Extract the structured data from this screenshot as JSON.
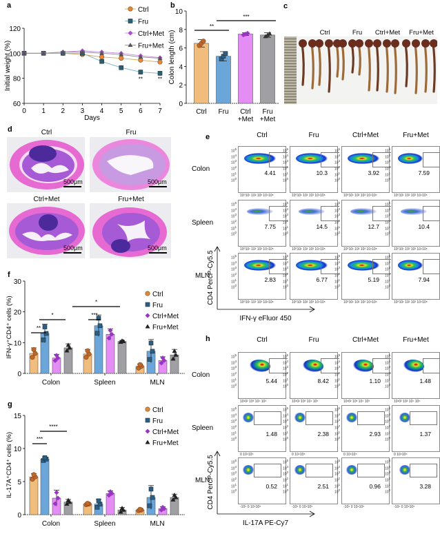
{
  "figure": {
    "panels": {
      "a": "a",
      "b": "b",
      "c": "c",
      "d": "d",
      "e": "e",
      "f": "f",
      "g": "g",
      "h": "h"
    },
    "groups": [
      "Ctrl",
      "Fru",
      "Ctrl+Met",
      "Fru+Met"
    ],
    "panel_c": {
      "labels": [
        "Ctrl",
        "Fru",
        "Ctrl+Met",
        "Fru+Met"
      ]
    },
    "panel_d": {
      "labels": [
        "Ctrl",
        "Fru",
        "Ctrl+Met",
        "Fru+Met"
      ],
      "scale_bar": "500μm"
    },
    "panel_e": {
      "col_titles": [
        "Ctrl",
        "Fru",
        "Ctrl+Met",
        "Fru+Met"
      ],
      "row_labels": [
        "Colon",
        "Spleen",
        "MLN"
      ],
      "values": [
        [
          "4.41",
          "10.3",
          "3.92",
          "7.59"
        ],
        [
          "7.75",
          "14.5",
          "12.7",
          "10.4"
        ],
        [
          "2.83",
          "6.77",
          "5.19",
          "7.94"
        ]
      ],
      "y_axis": "CD4 PercP-Cy5.5",
      "x_axis": "IFN-γ eFluor 450",
      "y_ticks": [
        "10⁵",
        "10⁴",
        "10³",
        "10²",
        "10¹",
        "10⁰"
      ],
      "x_ticks": "10⁰10¹ 10² 10³ 10⁴10⁵"
    },
    "panel_h": {
      "col_titles": [
        "Ctrl",
        "Fru",
        "Ctrl+Met",
        "Fru+Met"
      ],
      "row_labels": [
        "Colon",
        "Spleen",
        "MLN"
      ],
      "values": [
        [
          "5.44",
          "8.42",
          "1.10",
          "1.48"
        ],
        [
          "1.48",
          "2.38",
          "2.93",
          "1.37"
        ],
        [
          "0.52",
          "2.51",
          "0.96",
          "3.28"
        ]
      ],
      "y_axis": "CD4 PercP-Cy5.5",
      "x_axis": "IL-17A PE-Cy7",
      "x_ticks_rows": [
        "10¹0² 10³ 10⁴ 10⁵",
        "0     10⁴10⁵",
        "-10⁴  0    10⁴10⁵"
      ]
    }
  },
  "chart_data": [
    {
      "id": "a",
      "type": "line",
      "title": "",
      "xlabel": "Days",
      "ylabel": "Initial  weight (%)",
      "x": [
        0,
        1,
        2,
        3,
        4,
        5,
        6,
        7
      ],
      "xlim": [
        0,
        7
      ],
      "ylim": [
        60,
        120
      ],
      "yticks": [
        60,
        80,
        100,
        120
      ],
      "legend_position": "top-right",
      "series": [
        {
          "name": "Ctrl",
          "color": "#e8883a",
          "marker": "circle",
          "values": [
            100,
            100,
            100,
            99,
            97,
            96,
            94.5,
            93
          ]
        },
        {
          "name": "Fru",
          "color": "#2f5f6e",
          "marker": "square",
          "values": [
            100,
            100,
            100,
            100,
            93.5,
            88.5,
            85,
            84
          ]
        },
        {
          "name": "Ctrl+Met",
          "color": "#b04ad8",
          "marker": "diamond",
          "values": [
            100,
            100,
            101,
            102,
            101,
            100,
            98,
            96.5
          ]
        },
        {
          "name": "Fru+Met",
          "color": "#555555",
          "marker": "triangle",
          "values": [
            100,
            100,
            101,
            101,
            100,
            99,
            97,
            96
          ]
        }
      ],
      "annotations": [
        {
          "x": 6,
          "text": "**"
        },
        {
          "x": 7,
          "text": "**"
        }
      ]
    },
    {
      "id": "b",
      "type": "bar",
      "xlabel": "",
      "ylabel": "Colon length (cm)",
      "categories": [
        "Ctrl",
        "Fru",
        "Ctrl\n+Met",
        "Fru\n+Met"
      ],
      "values": [
        6.5,
        5.1,
        7.5,
        7.4
      ],
      "errors": [
        0.4,
        0.5,
        0.15,
        0.25
      ],
      "colors": [
        "#f0bd7c",
        "#6aa6d9",
        "#e48df5",
        "#a0a0a4"
      ],
      "ylim": [
        0,
        10
      ],
      "yticks": [
        0,
        2,
        4,
        6,
        8,
        10
      ],
      "significance": [
        {
          "from": 0,
          "to": 1,
          "label": "**"
        },
        {
          "from": 1,
          "to": 3,
          "label": "***"
        }
      ]
    },
    {
      "id": "f",
      "type": "bar",
      "ylabel": "IFN-γ⁺CD4⁺ cells (%)",
      "categories": [
        "Colon",
        "Spleen",
        "MLN"
      ],
      "series": [
        {
          "name": "Ctrl",
          "color": "#f0bd7c",
          "values": [
            6.5,
            6.3,
            2.3
          ],
          "errors": [
            1.8,
            1.5,
            0.8
          ]
        },
        {
          "name": "Fru",
          "color": "#6aa6d9",
          "values": [
            13,
            15.5,
            7.2
          ],
          "errors": [
            3,
            3.5,
            3.8
          ]
        },
        {
          "name": "Ctrl+Met",
          "color": "#e48df5",
          "values": [
            5,
            12.7,
            4.2
          ],
          "errors": [
            1.2,
            1.8,
            1.2
          ]
        },
        {
          "name": "Fru+Met",
          "color": "#a0a0a4",
          "values": [
            8.3,
            10.4,
            6
          ],
          "errors": [
            1.3,
            0.3,
            1.8
          ]
        }
      ],
      "ylim": [
        0,
        30
      ],
      "yticks": [
        0,
        10,
        20,
        30
      ],
      "legend_position": "top-right",
      "significance": [
        {
          "group": "Colon",
          "label": "**"
        },
        {
          "group": "Colon",
          "label": "*"
        },
        {
          "group": "Spleen",
          "label": "***"
        },
        {
          "group": "Spleen",
          "label": "*"
        }
      ]
    },
    {
      "id": "g",
      "type": "bar",
      "ylabel": "IL-17A⁺CD4⁺ cells (%)",
      "categories": [
        "Colon",
        "Spleen",
        "MLN"
      ],
      "series": [
        {
          "name": "Ctrl",
          "color": "#f0bd7c",
          "values": [
            5.7,
            1.6,
            0.7
          ],
          "errors": [
            0.5,
            0.15,
            0.15
          ]
        },
        {
          "name": "Fru",
          "color": "#6aa6d9",
          "values": [
            8.4,
            1.6,
            2.6
          ],
          "errors": [
            0.3,
            0.7,
            1.8
          ]
        },
        {
          "name": "Ctrl+Met",
          "color": "#e48df5",
          "values": [
            2.5,
            3.2,
            0.9
          ],
          "errors": [
            1.2,
            0.4,
            0.3
          ]
        },
        {
          "name": "Fru+Met",
          "color": "#a0a0a4",
          "values": [
            1.9,
            0.7,
            2.6
          ],
          "errors": [
            0.4,
            0.4,
            0.5
          ]
        }
      ],
      "ylim": [
        0,
        15
      ],
      "yticks": [
        0,
        5,
        10,
        15
      ],
      "legend_position": "top-right",
      "significance": [
        {
          "group": "Colon",
          "label": "***"
        },
        {
          "group": "Colon",
          "label": "****"
        }
      ]
    }
  ]
}
